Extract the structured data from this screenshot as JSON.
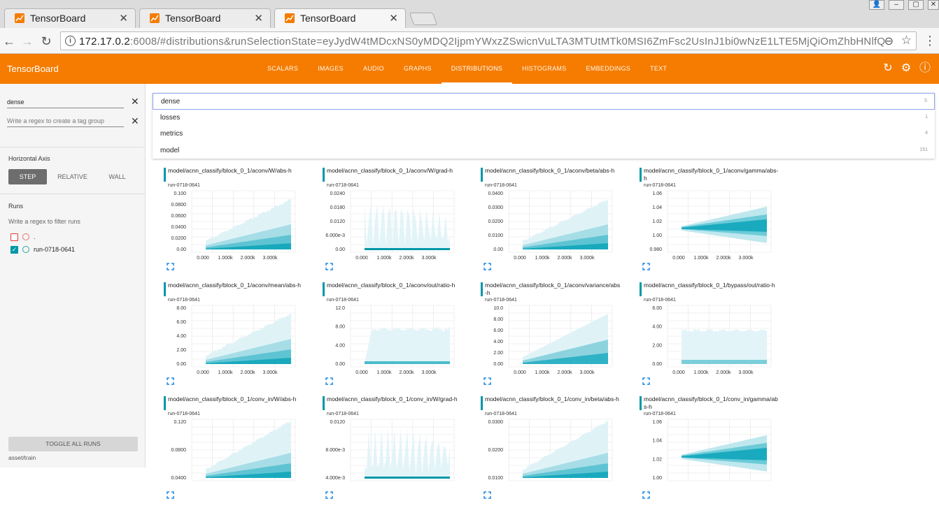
{
  "browser": {
    "tabs": [
      {
        "title": "TensorBoard",
        "active": false
      },
      {
        "title": "TensorBoard",
        "active": false
      },
      {
        "title": "TensorBoard",
        "active": true
      }
    ],
    "url_host": "172.17.0.2",
    "url_rest": ":6008/#distributions&runSelectionState=eyJydW4tMDcxNS0yMDQ2IjpmYWxzZSwicnVuLTA3MTUtMTk0MSI6ZmFsc2UsInJ1bi0wNzE1LTE5MjQiOmZhbHNlfQ"
  },
  "header": {
    "brand": "TensorBoard",
    "tabs": [
      "SCALARS",
      "IMAGES",
      "AUDIO",
      "GRAPHS",
      "DISTRIBUTIONS",
      "HISTOGRAMS",
      "EMBEDDINGS",
      "TEXT"
    ],
    "active_tab": "DISTRIBUTIONS"
  },
  "sidebar": {
    "tag_filter_value": "dense",
    "tag_group_placeholder": "Write a regex to create a tag group",
    "horizontal_axis_label": "Horizontal Axis",
    "axis_options": [
      "STEP",
      "RELATIVE",
      "WALL"
    ],
    "axis_selected": "STEP",
    "runs_label": "Runs",
    "runs_filter_placeholder": "Write a regex to filter runs",
    "runs": [
      {
        "name": ".",
        "checked": false,
        "color": "#e57373"
      },
      {
        "name": "run-0718-0641",
        "checked": true,
        "color": "#26a69a"
      }
    ],
    "toggle_all": "TOGGLE ALL RUNS",
    "footer": "asset/train"
  },
  "dropdown": [
    {
      "name": "dense",
      "count": "5"
    },
    {
      "name": "losses",
      "count": "1"
    },
    {
      "name": "metrics",
      "count": "4"
    },
    {
      "name": "model",
      "count": "151"
    }
  ],
  "cards": [
    {
      "title": "model/acnn_classify/block_0_1/aconv/W/abs-h",
      "run": "run-0718-0641",
      "yticks": [
        "0.100",
        "0.0800",
        "0.0600",
        "0.0400",
        "0.0200",
        "0.00"
      ],
      "xticks": [
        "0.000",
        "1.000k",
        "2.000k",
        "3.000k"
      ]
    },
    {
      "title": "model/acnn_classify/block_0_1/aconv/W/grad-h",
      "run": "run-0718-0641",
      "yticks": [
        "0.0240",
        "0.0180",
        "0.0120",
        "6.000e-3",
        "0.00"
      ],
      "xticks": [
        "0.000",
        "1.000k",
        "2.000k",
        "3.000k"
      ]
    },
    {
      "title": "model/acnn_classify/block_0_1/aconv/beta/abs-h",
      "run": "run-0718-0641",
      "yticks": [
        "0.0400",
        "0.0300",
        "0.0200",
        "0.0100",
        "0.00"
      ],
      "xticks": [
        "0.000",
        "1.000k",
        "2.000k",
        "3.000k"
      ]
    },
    {
      "title": "model/acnn_classify/block_0_1/aconv/gamma/abs-h",
      "run": "run-0718-0641",
      "yticks": [
        "1.06",
        "1.04",
        "1.02",
        "1.00",
        "0.980"
      ],
      "xticks": [
        "0.000",
        "1.000k",
        "2.000k",
        "3.000k"
      ]
    },
    {
      "title": "model/acnn_classify/block_0_1/aconv/mean/abs-h",
      "run": "run-0718-0641",
      "yticks": [
        "8.00",
        "6.00",
        "4.00",
        "2.00",
        "0.00"
      ],
      "xticks": [
        "0.000",
        "1.000k",
        "2.000k",
        "3.000k"
      ]
    },
    {
      "title": "model/acnn_classify/block_0_1/aconv/out/ratio-h",
      "run": "run-0718-0641",
      "yticks": [
        "12.0",
        "8.00",
        "4.00",
        "0.00"
      ],
      "xticks": [
        "0.000",
        "1.000k",
        "2.000k",
        "3.000k"
      ]
    },
    {
      "title": "model/acnn_classify/block_0_1/aconv/variance/abs-h",
      "run": "run-0718-0641",
      "yticks": [
        "10.0",
        "8.00",
        "6.00",
        "4.00",
        "2.00",
        "0.00"
      ],
      "xticks": [
        "0.000",
        "1.000k",
        "2.000k",
        "3.000k"
      ]
    },
    {
      "title": "model/acnn_classify/block_0_1/bypass/out/ratio-h",
      "run": "run-0718-0641",
      "yticks": [
        "6.00",
        "4.00",
        "2.00",
        "0.00"
      ],
      "xticks": [
        "0.000",
        "1.000k",
        "2.000k",
        "3.000k"
      ]
    },
    {
      "title": "model/acnn_classify/block_0_1/conv_in/W/abs-h",
      "run": "run-0718-0641",
      "yticks": [
        "0.120",
        "0.0800",
        "0.0400"
      ],
      "xticks": []
    },
    {
      "title": "model/acnn_classify/block_0_1/conv_in/W/grad-h",
      "run": "run-0718-0641",
      "yticks": [
        "0.0120",
        "8.000e-3",
        "4.000e-3"
      ],
      "xticks": []
    },
    {
      "title": "model/acnn_classify/block_0_1/conv_in/beta/abs-h",
      "run": "run-0718-0641",
      "yticks": [
        "0.0300",
        "0.0200",
        "0.0100"
      ],
      "xticks": []
    },
    {
      "title": "model/acnn_classify/block_0_1/conv_in/gamma/abs-h",
      "run": "run-0718-0641",
      "yticks": [
        "1.06",
        "1.04",
        "1.02",
        "1.00"
      ],
      "xticks": []
    }
  ]
}
